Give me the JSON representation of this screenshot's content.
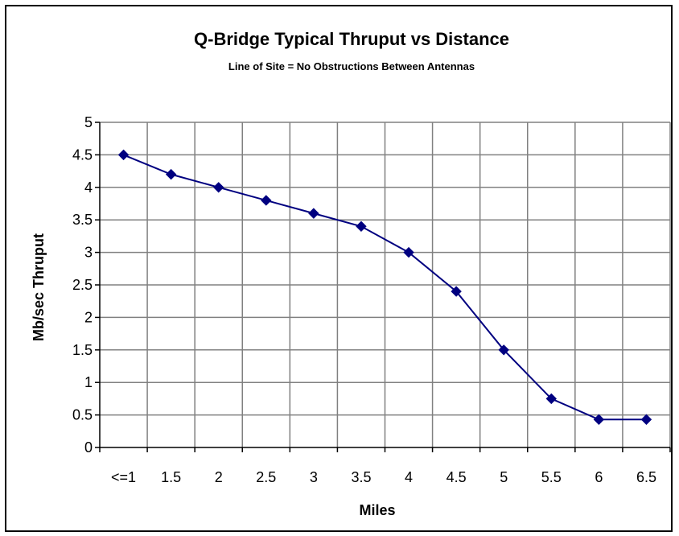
{
  "chart_data": {
    "type": "line",
    "title": "Q-Bridge Typical Thruput vs Distance",
    "subtitle": "Line of Site = No Obstructions Between Antennas",
    "xlabel": "Miles",
    "ylabel": "Mb/sec Thruput",
    "categories": [
      "<=1",
      "1.5",
      "2",
      "2.5",
      "3",
      "3.5",
      "4",
      "4.5",
      "5",
      "5.5",
      "6",
      "6.5"
    ],
    "series": [
      {
        "values": [
          4.5,
          4.2,
          4.0,
          3.8,
          3.6,
          3.4,
          3.0,
          2.4,
          1.5,
          0.75,
          0.43,
          0.43
        ]
      }
    ],
    "ylim": [
      0,
      5
    ],
    "yticks": [
      "0",
      "0.5",
      "1",
      "1.5",
      "2",
      "2.5",
      "3",
      "3.5",
      "4",
      "4.5",
      "5"
    ],
    "grid": true,
    "legend": "none",
    "colors": {
      "series": "#000080",
      "grid": "#808080",
      "plot_background": "#ffffff"
    }
  }
}
